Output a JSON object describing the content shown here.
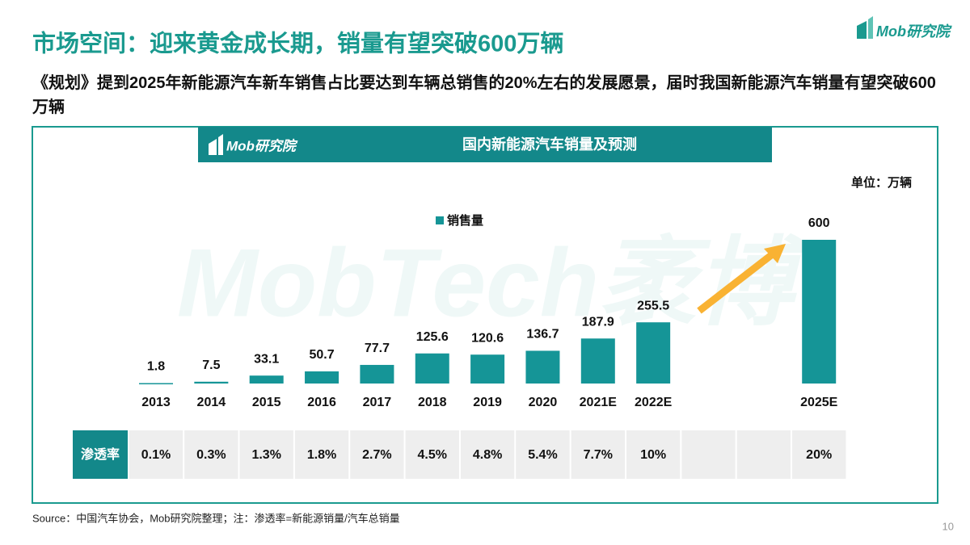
{
  "header": {
    "title": "市场空间：迎来黄金成长期，销量有望突破600万辆",
    "subtitle": "《规划》提到2025年新能源汽车新车销售占比要达到车辆总销售的20%左右的发展愿景，届时我国新能源汽车销量有望突破600万辆",
    "logo": "Mob研究院"
  },
  "chart_data": {
    "type": "bar",
    "title": "国内新能源汽车销量及预测",
    "logo": "Mob研究院",
    "unit": "单位：万辆",
    "watermark": "MobTech袤博",
    "categories": [
      "2013",
      "2014",
      "2015",
      "2016",
      "2017",
      "2018",
      "2019",
      "2020",
      "2021E",
      "2022E",
      null,
      null,
      "2025E"
    ],
    "series": [
      {
        "name": "销售量",
        "color": "#159597",
        "values": [
          1.8,
          7.5,
          33.1,
          50.7,
          77.7,
          125.6,
          120.6,
          136.7,
          187.9,
          255.5,
          null,
          null,
          600
        ]
      }
    ],
    "penetration": {
      "label": "渗透率",
      "cells": [
        "0.1%",
        "0.3%",
        "1.3%",
        "1.8%",
        "2.7%",
        "4.5%",
        "4.8%",
        "5.4%",
        "7.7%",
        "10%",
        null,
        null,
        "20%"
      ]
    }
  },
  "footer": {
    "source": "Source：中国汽车协会，Mob研究院整理；注：渗透率=新能源销量/汽车总销量",
    "page": "10"
  }
}
